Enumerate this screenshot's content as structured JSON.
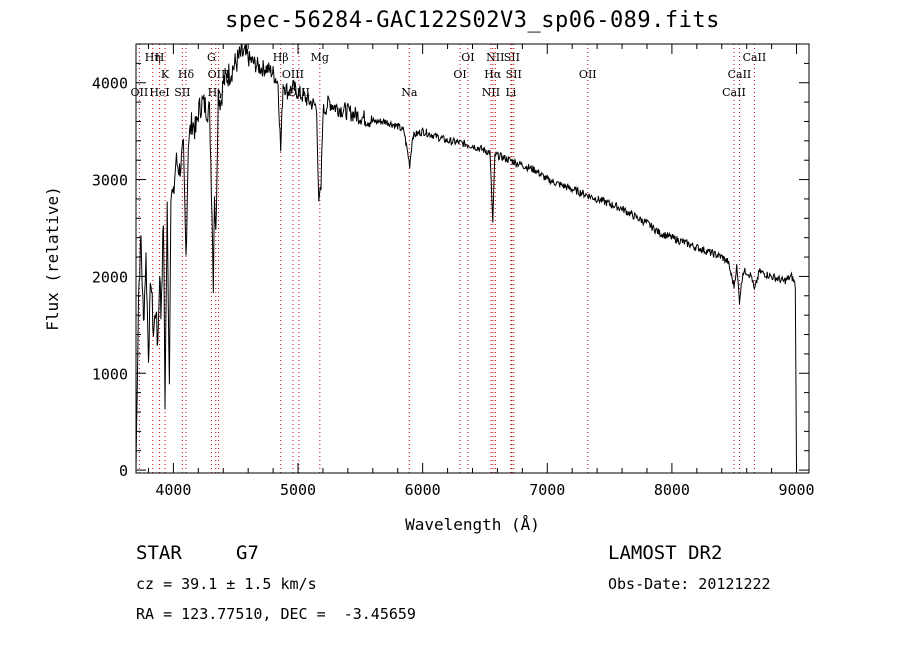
{
  "chart_data": {
    "type": "line",
    "title": "spec-56284-GAC122S02V3_sp06-089.fits",
    "xlabel": "Wavelength (Å)",
    "ylabel": "Flux (relative)",
    "xlim": [
      3700,
      9100
    ],
    "ylim": [
      -30,
      4400
    ],
    "x_ticks": [
      4000,
      5000,
      6000,
      7000,
      8000,
      9000
    ],
    "y_ticks": [
      0,
      1000,
      2000,
      3000,
      4000
    ],
    "grid": false,
    "series": [
      {
        "x": [
          3700,
          3720,
          3740,
          3760,
          3780,
          3800,
          3820,
          3840,
          3860,
          3870,
          3880,
          3890,
          3900,
          3920,
          3933,
          3950,
          3968,
          3980,
          4000,
          4020,
          4050,
          4080,
          4101,
          4120,
          4150,
          4180,
          4200,
          4230,
          4260,
          4290,
          4310,
          4320,
          4330,
          4340,
          4360,
          4380,
          4400,
          4450,
          4500,
          4550,
          4600,
          4650,
          4700,
          4750,
          4800,
          4840,
          4861,
          4880,
          4920,
          4960,
          5000,
          5050,
          5100,
          5150,
          5167,
          5172,
          5184,
          5200,
          5250,
          5300,
          5400,
          5500,
          5600,
          5700,
          5800,
          5850,
          5890,
          5896,
          5920,
          6000,
          6100,
          6200,
          6300,
          6400,
          6500,
          6540,
          6563,
          6580,
          6600,
          6700,
          6800,
          6900,
          7000,
          7100,
          7200,
          7300,
          7400,
          7500,
          7600,
          7700,
          7800,
          7900,
          8000,
          8100,
          8200,
          8300,
          8400,
          8450,
          8498,
          8520,
          8542,
          8570,
          8600,
          8640,
          8662,
          8700,
          8800,
          8900,
          8960,
          8980,
          8990,
          9000
        ],
        "y": [
          0,
          1800,
          2400,
          1500,
          2200,
          1200,
          2000,
          1400,
          1700,
          1300,
          1500,
          2100,
          1600,
          2600,
          700,
          2700,
          900,
          2900,
          2800,
          3200,
          3100,
          3300,
          2200,
          3400,
          3600,
          3500,
          3700,
          3800,
          3750,
          3700,
          2700,
          1950,
          2900,
          2400,
          3900,
          3800,
          4000,
          4100,
          4200,
          4300,
          4250,
          4200,
          4150,
          4150,
          4100,
          4000,
          3300,
          4000,
          3900,
          3950,
          3900,
          3850,
          3800,
          3750,
          2700,
          2800,
          2900,
          3700,
          3800,
          3750,
          3700,
          3650,
          3600,
          3600,
          3550,
          3500,
          3200,
          3150,
          3450,
          3500,
          3450,
          3400,
          3380,
          3350,
          3300,
          3280,
          2550,
          3250,
          3250,
          3200,
          3150,
          3100,
          3000,
          2950,
          2900,
          2850,
          2800,
          2750,
          2700,
          2620,
          2550,
          2450,
          2400,
          2350,
          2300,
          2250,
          2200,
          2150,
          1900,
          2100,
          1750,
          2050,
          2050,
          2000,
          1850,
          2050,
          2000,
          1950,
          2000,
          1950,
          1900,
          0
        ]
      }
    ],
    "line_markers": [
      {
        "label": "Hη",
        "wl": 3835,
        "row": 0
      },
      {
        "label": "H",
        "wl": 3889,
        "row": 0
      },
      {
        "label": "K",
        "wl": 3933,
        "row": 1
      },
      {
        "label": "Hδ",
        "wl": 4101,
        "row": 1
      },
      {
        "label": "OII",
        "wl": 3727,
        "row": 2
      },
      {
        "label": "HeI",
        "wl": 3889,
        "row": 2
      },
      {
        "label": "SII",
        "wl": 4072,
        "row": 2
      },
      {
        "label": "G",
        "wl": 4305,
        "row": 0
      },
      {
        "label": "OIII",
        "wl": 4363,
        "row": 1
      },
      {
        "label": "Hγ",
        "wl": 4340,
        "row": 2
      },
      {
        "label": "Hβ",
        "wl": 4861,
        "row": 0
      },
      {
        "label": "OIII",
        "wl": 4959,
        "row": 1
      },
      {
        "label": "OIII",
        "wl": 5007,
        "row": 2
      },
      {
        "label": "Mg",
        "wl": 5175,
        "row": 0
      },
      {
        "label": "Na",
        "wl": 5893,
        "row": 2
      },
      {
        "label": "OI",
        "wl": 6363,
        "row": 0
      },
      {
        "label": "OI",
        "wl": 6300,
        "row": 1
      },
      {
        "label": "NII",
        "wl": 6583,
        "row": 0
      },
      {
        "label": "SII",
        "wl": 6716,
        "row": 0
      },
      {
        "label": "Hα",
        "wl": 6563,
        "row": 1
      },
      {
        "label": "SII",
        "wl": 6731,
        "row": 1
      },
      {
        "label": "NII",
        "wl": 6548,
        "row": 2
      },
      {
        "label": "Li",
        "wl": 6708,
        "row": 2
      },
      {
        "label": "OII",
        "wl": 7325,
        "row": 1
      },
      {
        "label": "CaII",
        "wl": 8662,
        "row": 0
      },
      {
        "label": "CaII",
        "wl": 8542,
        "row": 1
      },
      {
        "label": "CaII",
        "wl": 8498,
        "row": 2
      }
    ]
  },
  "info": {
    "object_type": "STAR",
    "subclass": "G7",
    "survey": "LAMOST DR2",
    "redshift": "cz = 39.1 ± 1.5 km/s",
    "obs_date": "Obs-Date: 20121222",
    "coords": "RA = 123.77510, DEC =  -3.45659"
  },
  "colors": {
    "spectrum": "#000000",
    "marker": "#cc0000",
    "axis": "#000000"
  }
}
